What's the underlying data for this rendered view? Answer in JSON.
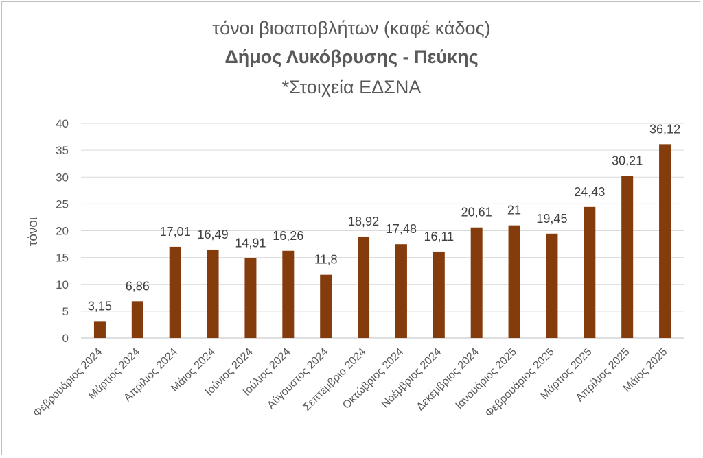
{
  "chart_data": {
    "type": "bar",
    "title": "τόνοι βιοαποβλήτων (καφέ κάδος)",
    "subtitle": "Δήμος Λυκόβρυσης - Πεύκης",
    "note": "*Στοιχεία ΕΔΣΝΑ",
    "xlabel": "",
    "ylabel": "τόνοι",
    "ylim": [
      0,
      40
    ],
    "yticks": [
      0,
      5,
      10,
      15,
      20,
      25,
      30,
      35,
      40
    ],
    "grid": true,
    "bar_color": "#843C0C",
    "categories": [
      "Φεβρουάριος 2024",
      "Μάρτιος 2024",
      "Απρίλιος 2024",
      "Μάιος 2024",
      "Ιούνιος 2024",
      "Ιούλιος 2024",
      "Αύγουστος 2024",
      "Σεπτέμβριο 2024",
      "Οκτώβριος 2024",
      "Νοέμβριος 2024",
      "Δεκέμβριος 2024",
      "Ιανουάριος 2025",
      "Φεβρουάριος 2025",
      "Μάρτιος 2025",
      "Απρίλιος 2025",
      "Μάιος 2025"
    ],
    "values": [
      3.15,
      6.86,
      17.01,
      16.49,
      14.91,
      16.26,
      11.8,
      18.92,
      17.48,
      16.11,
      20.61,
      21,
      19.45,
      24.43,
      30.21,
      36.12
    ],
    "value_labels": [
      "3,15",
      "6,86",
      "17,01",
      "16,49",
      "14,91",
      "16,26",
      "11,8",
      "18,92",
      "17,48",
      "16,11",
      "20,61",
      "21",
      "19,45",
      "24,43",
      "30,21",
      "36,12"
    ]
  }
}
